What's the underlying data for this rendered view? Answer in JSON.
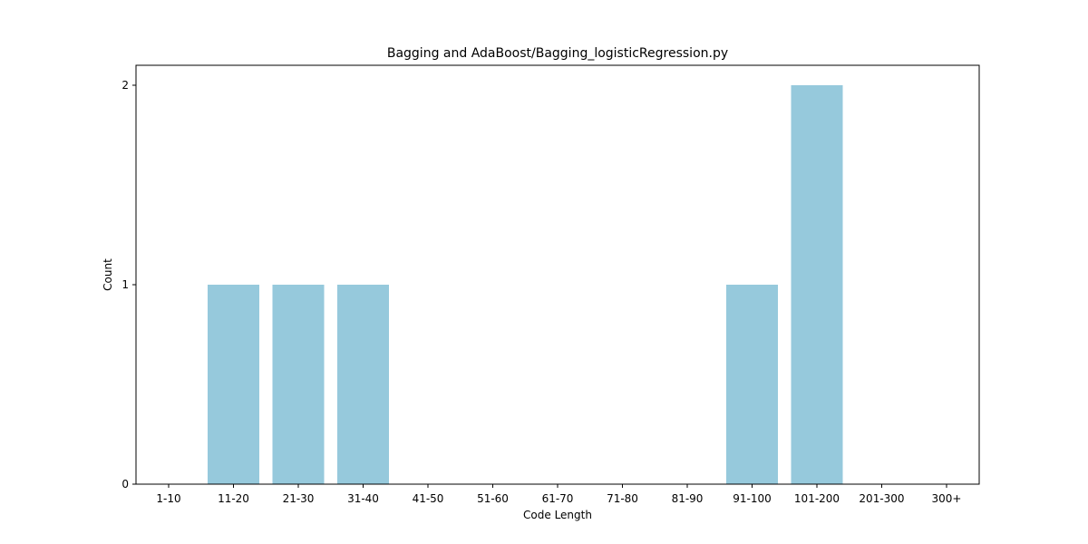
{
  "chart_data": {
    "type": "bar",
    "title": "Bagging and AdaBoost/Bagging_logisticRegression.py",
    "xlabel": "Code Length",
    "ylabel": "Count",
    "categories": [
      "1-10",
      "11-20",
      "21-30",
      "31-40",
      "41-50",
      "51-60",
      "61-70",
      "71-80",
      "81-90",
      "91-100",
      "101-200",
      "201-300",
      "300+"
    ],
    "values": [
      0,
      1,
      1,
      1,
      0,
      0,
      0,
      0,
      0,
      1,
      2,
      0,
      0
    ],
    "yticks": [
      0,
      1,
      2
    ],
    "ylim": [
      0,
      2.1
    ],
    "bar_color": "#96c9dc",
    "grid": false,
    "legend": "none"
  }
}
